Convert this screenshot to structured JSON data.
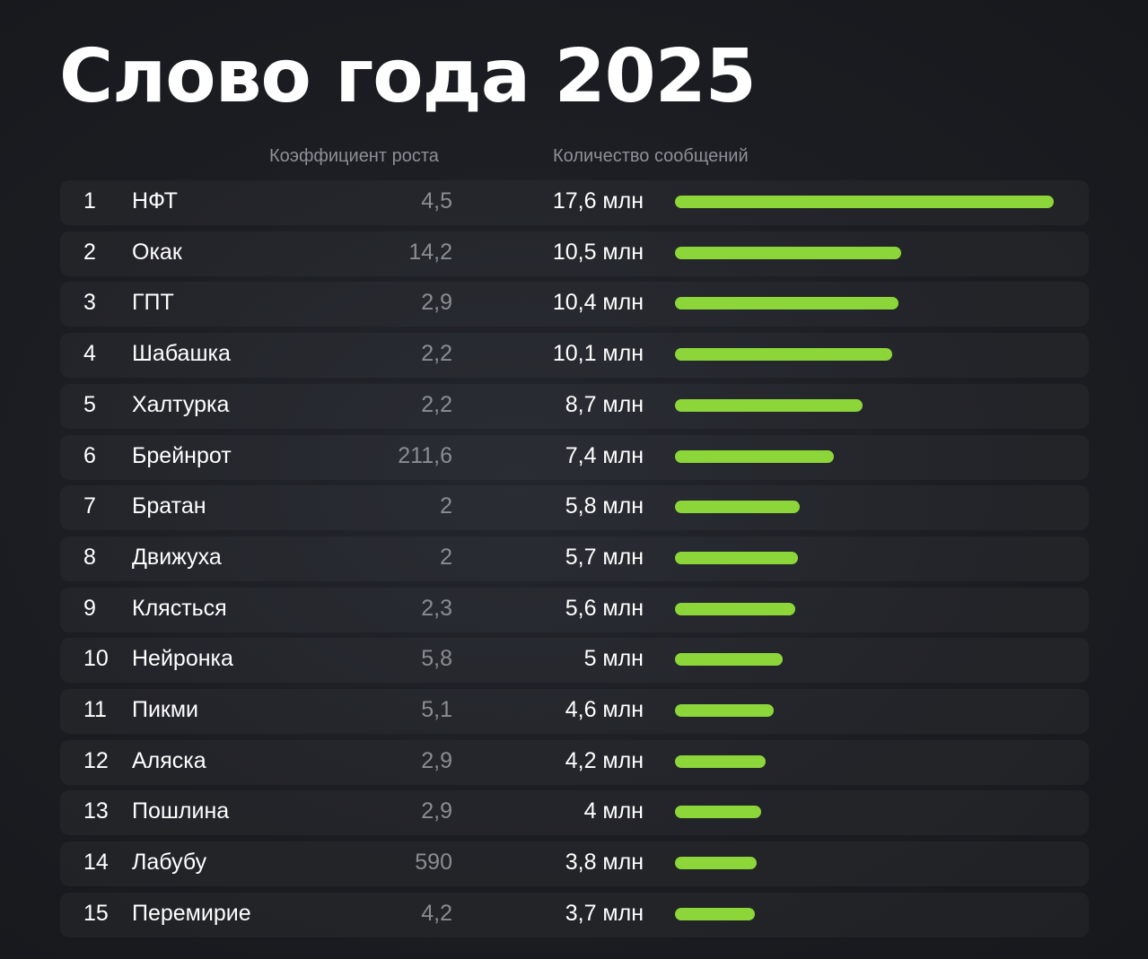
{
  "title": "Слово года 2025",
  "chart_data": {
    "type": "bar",
    "title": "Слово года 2025",
    "columns": {
      "growth": "Коэффициент роста",
      "count": "Количество сообщений"
    },
    "unit": "млн",
    "bar_color": "#8cd63a",
    "rows": [
      {
        "rank": "1",
        "word": "НФТ",
        "growth": "4,5",
        "count_label": "17,6 млн",
        "count": 17.6
      },
      {
        "rank": "2",
        "word": "Окак",
        "growth": "14,2",
        "count_label": "10,5 млн",
        "count": 10.5
      },
      {
        "rank": "3",
        "word": "ГПТ",
        "growth": "2,9",
        "count_label": "10,4 млн",
        "count": 10.4
      },
      {
        "rank": "4",
        "word": "Шабашка",
        "growth": "2,2",
        "count_label": "10,1 млн",
        "count": 10.1
      },
      {
        "rank": "5",
        "word": "Халтурка",
        "growth": "2,2",
        "count_label": "8,7 млн",
        "count": 8.7
      },
      {
        "rank": "6",
        "word": "Брейнрот",
        "growth": "211,6",
        "count_label": "7,4 млн",
        "count": 7.4
      },
      {
        "rank": "7",
        "word": "Братан",
        "growth": "2",
        "count_label": "5,8 млн",
        "count": 5.8
      },
      {
        "rank": "8",
        "word": "Движуха",
        "growth": "2",
        "count_label": "5,7 млн",
        "count": 5.7
      },
      {
        "rank": "9",
        "word": "Клясться",
        "growth": "2,3",
        "count_label": "5,6 млн",
        "count": 5.6
      },
      {
        "rank": "10",
        "word": "Нейронка",
        "growth": "5,8",
        "count_label": "5 млн",
        "count": 5
      },
      {
        "rank": "11",
        "word": "Пикми",
        "growth": "5,1",
        "count_label": "4,6 млн",
        "count": 4.6
      },
      {
        "rank": "12",
        "word": "Аляска",
        "growth": "2,9",
        "count_label": "4,2 млн",
        "count": 4.2
      },
      {
        "rank": "13",
        "word": "Пошлина",
        "growth": "2,9",
        "count_label": "4 млн",
        "count": 4
      },
      {
        "rank": "14",
        "word": "Лабубу",
        "growth": "590",
        "count_label": "3,8 млн",
        "count": 3.8
      },
      {
        "rank": "15",
        "word": "Перемирие",
        "growth": "4,2",
        "count_label": "3,7 млн",
        "count": 3.7
      }
    ]
  }
}
